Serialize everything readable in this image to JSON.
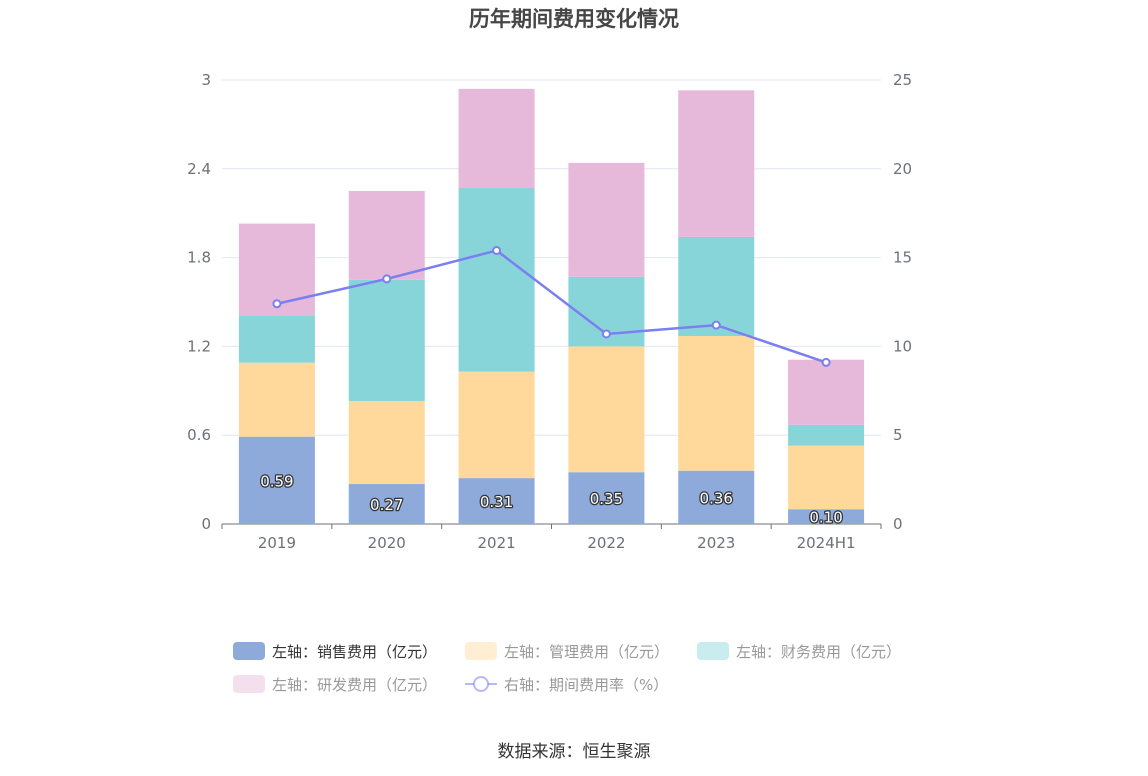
{
  "chart_data": {
    "type": "bar",
    "title": "历年期间费用变化情况",
    "categories": [
      "2019",
      "2020",
      "2021",
      "2022",
      "2023",
      "2024H1"
    ],
    "stacked": true,
    "y_left": {
      "ticks": [
        "0",
        "0.6",
        "1.2",
        "1.8",
        "2.4",
        "3"
      ],
      "ylim": [
        0,
        3
      ]
    },
    "y_right": {
      "ticks": [
        "0",
        "5",
        "10",
        "15",
        "20",
        "25"
      ],
      "ylim": [
        0,
        25
      ]
    },
    "series": [
      {
        "name": "左轴：销售费用（亿元）",
        "axis": "left",
        "type": "bar",
        "color": "#8eaadb",
        "values": [
          0.59,
          0.27,
          0.31,
          0.35,
          0.36,
          0.1
        ],
        "labels": [
          "0.59",
          "0.27",
          "0.31",
          "0.35",
          "0.36",
          "0.10"
        ]
      },
      {
        "name": "左轴：管理费用（亿元）",
        "axis": "left",
        "type": "bar",
        "color": "#ffd99b",
        "values": [
          0.5,
          0.56,
          0.72,
          0.85,
          0.91,
          0.43
        ]
      },
      {
        "name": "左轴：财务费用（亿元）",
        "axis": "left",
        "type": "bar",
        "color": "#88d5d9",
        "values": [
          0.32,
          0.82,
          1.24,
          0.47,
          0.67,
          0.14
        ]
      },
      {
        "name": "左轴：研发费用（亿元）",
        "axis": "left",
        "type": "bar",
        "color": "#e6b8da",
        "values": [
          0.62,
          0.6,
          0.67,
          0.77,
          0.99,
          0.44
        ]
      },
      {
        "name": "右轴：期间费用率（%）",
        "axis": "right",
        "type": "line",
        "color": "#7b7ff0",
        "values": [
          12.4,
          13.8,
          15.4,
          10.7,
          11.2,
          9.1
        ]
      }
    ],
    "legend_position": "bottom",
    "grid": true
  },
  "source_text": "数据来源：恒生聚源"
}
